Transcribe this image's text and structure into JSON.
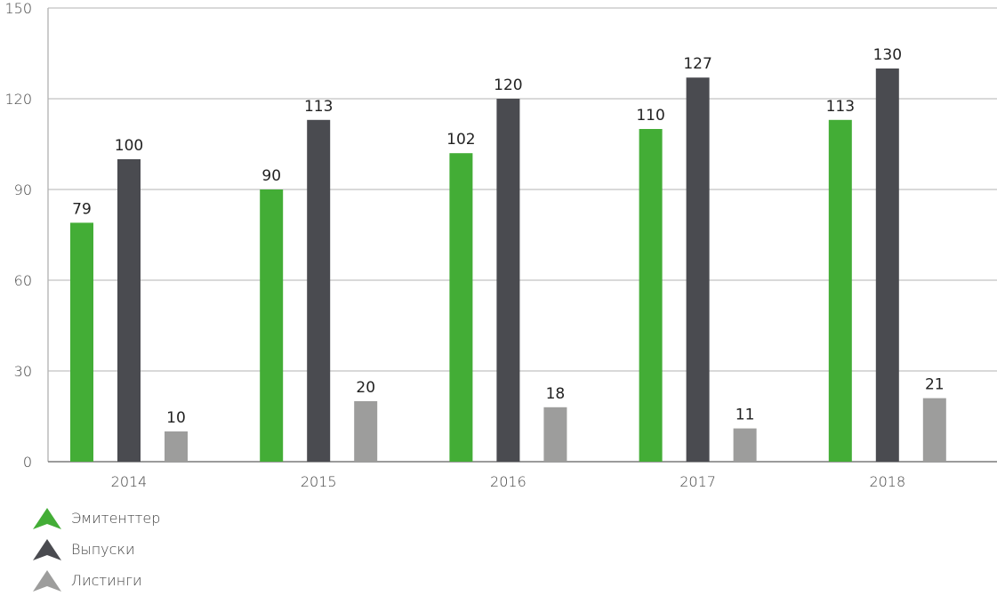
{
  "chart_data": {
    "type": "bar",
    "categories": [
      "2014",
      "2015",
      "2016",
      "2017",
      "2018"
    ],
    "series": [
      {
        "name": "Эмитенттер",
        "color": "#43ad36",
        "values": [
          79,
          90,
          102,
          110,
          113
        ]
      },
      {
        "name": "Выпуски",
        "color": "#4a4b50",
        "values": [
          100,
          113,
          120,
          127,
          130
        ]
      },
      {
        "name": "Листинги",
        "color": "#9d9d9c",
        "values": [
          10,
          20,
          18,
          11,
          21
        ]
      }
    ],
    "yticks": [
      "0",
      "30",
      "60",
      "90",
      "120",
      "150"
    ],
    "ylim": [
      0,
      150
    ],
    "grid": true,
    "legend_position": "bottom-left"
  }
}
